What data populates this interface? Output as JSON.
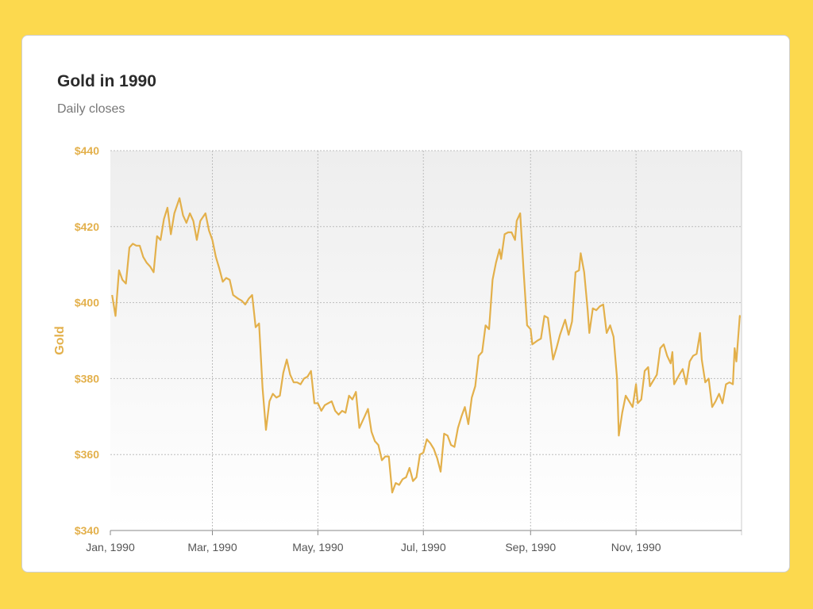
{
  "card": {
    "title": "Gold in 1990",
    "subtitle": "Daily closes"
  },
  "colors": {
    "frame": "#fcd94e",
    "line": "#e3b04b",
    "grid": "#bdbdbd",
    "ytick": "#e3b04b",
    "xtick": "#555555"
  },
  "chart_data": {
    "type": "line",
    "title": "Gold in 1990",
    "subtitle": "Daily closes",
    "ylabel": "Gold",
    "xlabel": "",
    "ylim": [
      340,
      440
    ],
    "y_ticks": [
      340,
      360,
      380,
      400,
      420,
      440
    ],
    "y_tick_labels": [
      "$340",
      "$360",
      "$380",
      "$400",
      "$420",
      "$440"
    ],
    "x_range": [
      "1990-01-01",
      "1991-01-01"
    ],
    "x_ticks": [
      "1990-01-01",
      "1990-03-01",
      "1990-05-01",
      "1990-07-01",
      "1990-09-01",
      "1990-11-01"
    ],
    "x_tick_labels": [
      "Jan, 1990",
      "Mar, 1990",
      "May, 1990",
      "Jul, 1990",
      "Sep, 1990",
      "Nov, 1990"
    ],
    "grid": true,
    "series": [
      {
        "name": "Gold",
        "points": [
          [
            "1990-01-02",
            402
          ],
          [
            "1990-01-04",
            396.5
          ],
          [
            "1990-01-06",
            408.5
          ],
          [
            "1990-01-08",
            406
          ],
          [
            "1990-01-10",
            405
          ],
          [
            "1990-01-12",
            414.5
          ],
          [
            "1990-01-14",
            415.5
          ],
          [
            "1990-01-16",
            415
          ],
          [
            "1990-01-18",
            415
          ],
          [
            "1990-01-20",
            412
          ],
          [
            "1990-01-22",
            410.5
          ],
          [
            "1990-01-24",
            409.5
          ],
          [
            "1990-01-26",
            408
          ],
          [
            "1990-01-28",
            417.5
          ],
          [
            "1990-01-30",
            416.5
          ],
          [
            "1990-02-01",
            422
          ],
          [
            "1990-02-03",
            425
          ],
          [
            "1990-02-05",
            418
          ],
          [
            "1990-02-07",
            423.5
          ],
          [
            "1990-02-10",
            427.5
          ],
          [
            "1990-02-12",
            423
          ],
          [
            "1990-02-14",
            421
          ],
          [
            "1990-02-16",
            423.5
          ],
          [
            "1990-02-18",
            421.5
          ],
          [
            "1990-02-20",
            416.5
          ],
          [
            "1990-02-22",
            421.5
          ],
          [
            "1990-02-25",
            423.5
          ],
          [
            "1990-02-27",
            419
          ],
          [
            "1990-03-01",
            416.5
          ],
          [
            "1990-03-03",
            412
          ],
          [
            "1990-03-05",
            409
          ],
          [
            "1990-03-07",
            405.5
          ],
          [
            "1990-03-09",
            406.5
          ],
          [
            "1990-03-11",
            406
          ],
          [
            "1990-03-13",
            402
          ],
          [
            "1990-03-16",
            401
          ],
          [
            "1990-03-18",
            400.5
          ],
          [
            "1990-03-20",
            399.5
          ],
          [
            "1990-03-22",
            401
          ],
          [
            "1990-03-24",
            402
          ],
          [
            "1990-03-26",
            393.5
          ],
          [
            "1990-03-28",
            394.5
          ],
          [
            "1990-03-30",
            377.5
          ],
          [
            "1990-04-01",
            366.5
          ],
          [
            "1990-04-03",
            374
          ],
          [
            "1990-04-05",
            376
          ],
          [
            "1990-04-07",
            375
          ],
          [
            "1990-04-09",
            375.5
          ],
          [
            "1990-04-11",
            381.5
          ],
          [
            "1990-04-13",
            385
          ],
          [
            "1990-04-15",
            381
          ],
          [
            "1990-04-17",
            379
          ],
          [
            "1990-04-19",
            379
          ],
          [
            "1990-04-21",
            378.5
          ],
          [
            "1990-04-23",
            380
          ],
          [
            "1990-04-25",
            380.5
          ],
          [
            "1990-04-27",
            382
          ],
          [
            "1990-04-29",
            373.5
          ],
          [
            "1990-05-01",
            373.5
          ],
          [
            "1990-05-03",
            371.5
          ],
          [
            "1990-05-05",
            373
          ],
          [
            "1990-05-07",
            373.5
          ],
          [
            "1990-05-09",
            374
          ],
          [
            "1990-05-11",
            371.5
          ],
          [
            "1990-05-13",
            370.5
          ],
          [
            "1990-05-15",
            371.5
          ],
          [
            "1990-05-17",
            371
          ],
          [
            "1990-05-19",
            375.5
          ],
          [
            "1990-05-21",
            374.5
          ],
          [
            "1990-05-23",
            376.5
          ],
          [
            "1990-05-25",
            367
          ],
          [
            "1990-05-28",
            370
          ],
          [
            "1990-05-30",
            372
          ],
          [
            "1990-06-01",
            366
          ],
          [
            "1990-06-03",
            363.5
          ],
          [
            "1990-06-05",
            362.5
          ],
          [
            "1990-06-07",
            358.5
          ],
          [
            "1990-06-09",
            359.5
          ],
          [
            "1990-06-11",
            359.5
          ],
          [
            "1990-06-13",
            350
          ],
          [
            "1990-06-15",
            352.5
          ],
          [
            "1990-06-17",
            352
          ],
          [
            "1990-06-19",
            353.5
          ],
          [
            "1990-06-21",
            354
          ],
          [
            "1990-06-23",
            356.5
          ],
          [
            "1990-06-25",
            353
          ],
          [
            "1990-06-27",
            354
          ],
          [
            "1990-06-29",
            360
          ],
          [
            "1990-07-01",
            360.5
          ],
          [
            "1990-07-03",
            364
          ],
          [
            "1990-07-05",
            363
          ],
          [
            "1990-07-07",
            361.5
          ],
          [
            "1990-07-09",
            359
          ],
          [
            "1990-07-11",
            355.5
          ],
          [
            "1990-07-13",
            365.5
          ],
          [
            "1990-07-15",
            365
          ],
          [
            "1990-07-17",
            362.5
          ],
          [
            "1990-07-19",
            362
          ],
          [
            "1990-07-21",
            367
          ],
          [
            "1990-07-23",
            370
          ],
          [
            "1990-07-25",
            372.5
          ],
          [
            "1990-07-27",
            368
          ],
          [
            "1990-07-29",
            375
          ],
          [
            "1990-07-31",
            378
          ],
          [
            "1990-08-02",
            386
          ],
          [
            "1990-08-04",
            387
          ],
          [
            "1990-08-06",
            394
          ],
          [
            "1990-08-08",
            393
          ],
          [
            "1990-08-10",
            406
          ],
          [
            "1990-08-12",
            410.5
          ],
          [
            "1990-08-14",
            414
          ],
          [
            "1990-08-15",
            411.5
          ],
          [
            "1990-08-17",
            418
          ],
          [
            "1990-08-19",
            418.5
          ],
          [
            "1990-08-21",
            418.5
          ],
          [
            "1990-08-23",
            416.5
          ],
          [
            "1990-08-24",
            421.5
          ],
          [
            "1990-08-26",
            423.5
          ],
          [
            "1990-08-28",
            408
          ],
          [
            "1990-08-30",
            394
          ],
          [
            "1990-09-01",
            393
          ],
          [
            "1990-09-02",
            389
          ],
          [
            "1990-09-05",
            390
          ],
          [
            "1990-09-07",
            390.5
          ],
          [
            "1990-09-09",
            396.5
          ],
          [
            "1990-09-11",
            396
          ],
          [
            "1990-09-14",
            385
          ],
          [
            "1990-09-16",
            388
          ],
          [
            "1990-09-18",
            391.5
          ],
          [
            "1990-09-21",
            395.5
          ],
          [
            "1990-09-23",
            391.5
          ],
          [
            "1990-09-25",
            395
          ],
          [
            "1990-09-27",
            408
          ],
          [
            "1990-09-29",
            408.5
          ],
          [
            "1990-09-30",
            413
          ],
          [
            "1990-10-02",
            408
          ],
          [
            "1990-10-04",
            398
          ],
          [
            "1990-10-05",
            392
          ],
          [
            "1990-10-07",
            398.5
          ],
          [
            "1990-10-09",
            398
          ],
          [
            "1990-10-11",
            399
          ],
          [
            "1990-10-13",
            399.5
          ],
          [
            "1990-10-15",
            392
          ],
          [
            "1990-10-17",
            394
          ],
          [
            "1990-10-19",
            391
          ],
          [
            "1990-10-21",
            380
          ],
          [
            "1990-10-22",
            365
          ],
          [
            "1990-10-24",
            371
          ],
          [
            "1990-10-26",
            375.5
          ],
          [
            "1990-10-28",
            374
          ],
          [
            "1990-10-30",
            372.5
          ],
          [
            "1990-11-01",
            378.5
          ],
          [
            "1990-11-02",
            373.5
          ],
          [
            "1990-11-04",
            374.5
          ],
          [
            "1990-11-06",
            382
          ],
          [
            "1990-11-08",
            383
          ],
          [
            "1990-11-09",
            378
          ],
          [
            "1990-11-11",
            379.5
          ],
          [
            "1990-11-13",
            381
          ],
          [
            "1990-11-15",
            388
          ],
          [
            "1990-11-17",
            389
          ],
          [
            "1990-11-19",
            386
          ],
          [
            "1990-11-21",
            384
          ],
          [
            "1990-11-22",
            387
          ],
          [
            "1990-11-23",
            378.5
          ],
          [
            "1990-11-26",
            381
          ],
          [
            "1990-11-28",
            382.5
          ],
          [
            "1990-11-30",
            378.5
          ],
          [
            "1990-12-02",
            384.5
          ],
          [
            "1990-12-04",
            386
          ],
          [
            "1990-12-06",
            386.5
          ],
          [
            "1990-12-08",
            392
          ],
          [
            "1990-12-09",
            385
          ],
          [
            "1990-12-11",
            379
          ],
          [
            "1990-12-13",
            380
          ],
          [
            "1990-12-15",
            372.5
          ],
          [
            "1990-12-17",
            374
          ],
          [
            "1990-12-19",
            376
          ],
          [
            "1990-12-21",
            373.5
          ],
          [
            "1990-12-23",
            378.5
          ],
          [
            "1990-12-25",
            379
          ],
          [
            "1990-12-27",
            378.5
          ],
          [
            "1990-12-28",
            388
          ],
          [
            "1990-12-29",
            384.5
          ],
          [
            "1990-12-31",
            396.5
          ],
          [
            "1990-12-31",
            396
          ]
        ]
      }
    ]
  }
}
